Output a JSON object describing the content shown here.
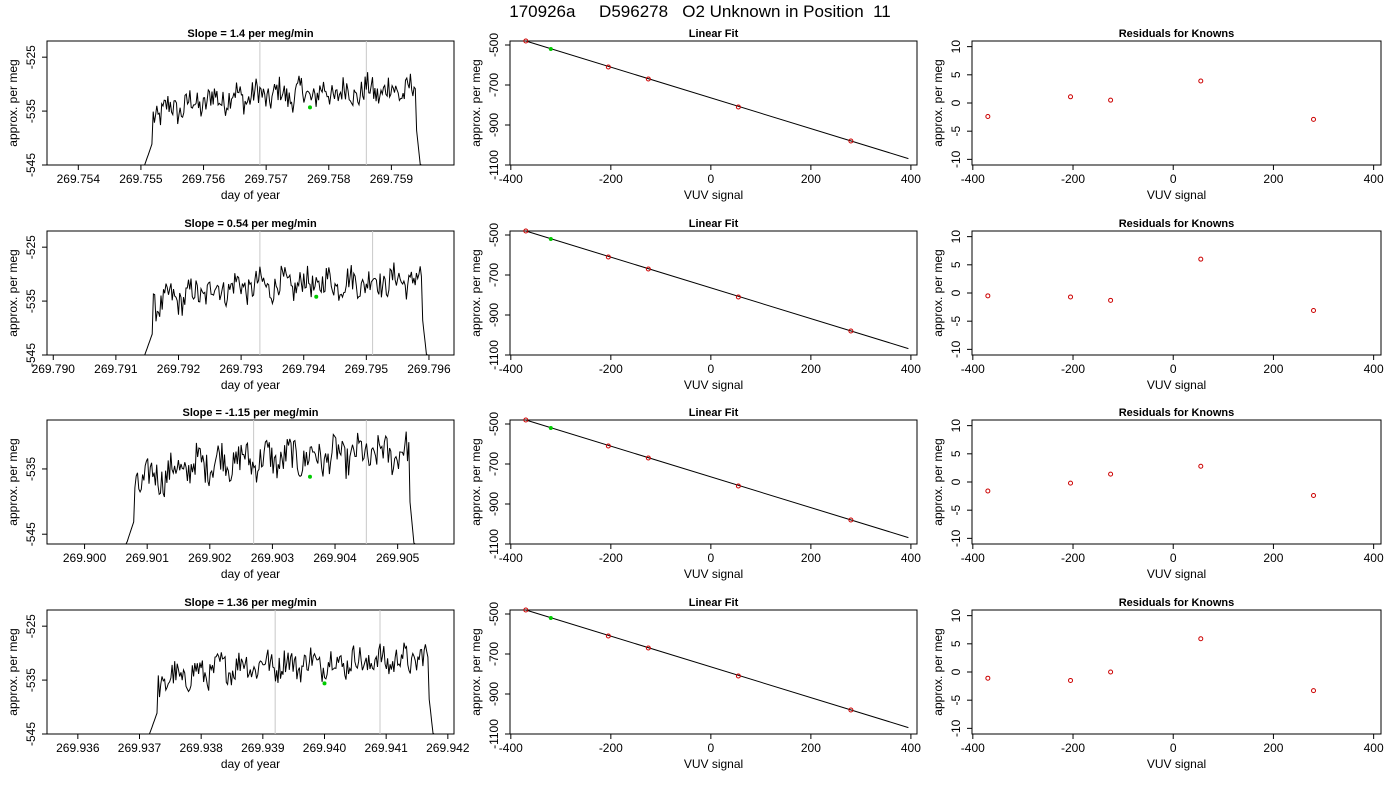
{
  "title": "170926a     D596278   O2 Unknown in Position  11",
  "colors": {
    "trace": "#000000",
    "marker": "#00cc00",
    "knowns": "#cc0000",
    "vline": "#c8c8c8",
    "fit": "#000000"
  },
  "rows": [
    {
      "slope_title": "Slope =  1.4  per meg/min",
      "xlabel": "day of year",
      "ylabel": "approx. per meg",
      "xlim": [
        269.7535,
        269.76
      ],
      "ylim": [
        -545,
        -522
      ],
      "xticks": [
        "269.754",
        "269.755",
        "269.756",
        "269.757",
        "269.758",
        "269.759"
      ],
      "yticks": [
        "-525",
        "-535",
        "-545"
      ],
      "vlines": [
        269.7569,
        269.7586
      ],
      "trace_start": 269.755,
      "trace_end": 269.7595,
      "marker": {
        "x": 269.7577,
        "y": -534.3
      },
      "fit_title": "Linear Fit",
      "fit_xlabel": "VUV signal",
      "fit_ylabel": "approx. per meg",
      "fit_xticks": [
        "-400",
        "-200",
        "0",
        "200",
        "400"
      ],
      "fit_yticks": [
        "-500",
        "-700",
        "-900",
        "-1100"
      ],
      "fit_line": [
        [
          -370,
          -480
        ],
        [
          395,
          -1068
        ]
      ],
      "unknown": {
        "x": -320,
        "y": -520
      },
      "knowns": [
        {
          "x": -370,
          "y": -480
        },
        {
          "x": -205,
          "y": -610
        },
        {
          "x": -125,
          "y": -670
        },
        {
          "x": 55,
          "y": -810
        },
        {
          "x": 280,
          "y": -980
        }
      ],
      "resid_title": "Residuals for Knowns",
      "resid_xlabel": "VUV signal",
      "resid_ylabel": "approx. per meg",
      "resid_xticks": [
        "-400",
        "-200",
        "0",
        "200",
        "400"
      ],
      "resid_yticks": [
        "10",
        "5",
        "0",
        "-5",
        "-10"
      ],
      "residuals": [
        {
          "x": -370,
          "y": -2.4
        },
        {
          "x": -205,
          "y": 1.1
        },
        {
          "x": -125,
          "y": 0.5
        },
        {
          "x": 55,
          "y": 3.9
        },
        {
          "x": 280,
          "y": -2.9
        }
      ]
    },
    {
      "slope_title": "Slope =  0.54  per meg/min",
      "xlabel": "day of year",
      "ylabel": "approx. per meg",
      "xlim": [
        269.7899,
        269.7964
      ],
      "ylim": [
        -545,
        -522
      ],
      "xticks": [
        "269.790",
        "269.791",
        "269.792",
        "269.793",
        "269.794",
        "269.795",
        "269.796"
      ],
      "yticks": [
        "-525",
        "-535",
        "-545"
      ],
      "vlines": [
        269.7933,
        269.7951
      ],
      "trace_start": 269.7914,
      "trace_end": 269.796,
      "marker": {
        "x": 269.7942,
        "y": -534.2
      },
      "fit_title": "Linear Fit",
      "fit_xlabel": "VUV signal",
      "fit_ylabel": "approx. per meg",
      "fit_xticks": [
        "-400",
        "-200",
        "0",
        "200",
        "400"
      ],
      "fit_yticks": [
        "-500",
        "-700",
        "-900",
        "-1100"
      ],
      "fit_line": [
        [
          -370,
          -480
        ],
        [
          395,
          -1068
        ]
      ],
      "unknown": {
        "x": -320,
        "y": -520
      },
      "knowns": [
        {
          "x": -370,
          "y": -480
        },
        {
          "x": -205,
          "y": -610
        },
        {
          "x": -125,
          "y": -670
        },
        {
          "x": 55,
          "y": -810
        },
        {
          "x": 280,
          "y": -980
        }
      ],
      "resid_title": "Residuals for Knowns",
      "resid_xlabel": "VUV signal",
      "resid_ylabel": "approx. per meg",
      "resid_xticks": [
        "-400",
        "-200",
        "0",
        "200",
        "400"
      ],
      "resid_yticks": [
        "10",
        "5",
        "0",
        "-5",
        "-10"
      ],
      "residuals": [
        {
          "x": -370,
          "y": -0.5
        },
        {
          "x": -205,
          "y": -0.7
        },
        {
          "x": -125,
          "y": -1.3
        },
        {
          "x": 55,
          "y": 6.0
        },
        {
          "x": 280,
          "y": -3.1
        }
      ]
    },
    {
      "slope_title": "Slope =  -1.15  per meg/min",
      "xlabel": "day of year",
      "ylabel": "approx. per meg",
      "xlim": [
        269.8994,
        269.9059
      ],
      "ylim": [
        -546.5,
        -527.5
      ],
      "xticks": [
        "269.900",
        "269.901",
        "269.902",
        "269.903",
        "269.904",
        "269.905"
      ],
      "yticks": [
        "-535",
        "-545"
      ],
      "vlines": [
        269.9027,
        269.9045
      ],
      "trace_start": 269.9006,
      "trace_end": 269.9053,
      "marker": {
        "x": 269.9036,
        "y": -536.2
      },
      "fit_title": "Linear Fit",
      "fit_xlabel": "VUV signal",
      "fit_ylabel": "approx. per meg",
      "fit_xticks": [
        "-400",
        "-200",
        "0",
        "200",
        "400"
      ],
      "fit_yticks": [
        "-500",
        "-700",
        "-900",
        "-1100"
      ],
      "fit_line": [
        [
          -370,
          -480
        ],
        [
          395,
          -1068
        ]
      ],
      "unknown": {
        "x": -320,
        "y": -520
      },
      "knowns": [
        {
          "x": -370,
          "y": -480
        },
        {
          "x": -205,
          "y": -610
        },
        {
          "x": -125,
          "y": -670
        },
        {
          "x": 55,
          "y": -810
        },
        {
          "x": 280,
          "y": -980
        }
      ],
      "resid_title": "Residuals for Knowns",
      "resid_xlabel": "VUV signal",
      "resid_ylabel": "approx. per meg",
      "resid_xticks": [
        "-400",
        "-200",
        "0",
        "200",
        "400"
      ],
      "resid_yticks": [
        "10",
        "5",
        "0",
        "-5",
        "-10"
      ],
      "residuals": [
        {
          "x": -370,
          "y": -1.6
        },
        {
          "x": -205,
          "y": -0.2
        },
        {
          "x": -125,
          "y": 1.4
        },
        {
          "x": 55,
          "y": 2.8
        },
        {
          "x": 280,
          "y": -2.4
        }
      ]
    },
    {
      "slope_title": "Slope =  1.36  per meg/min",
      "xlabel": "day of year",
      "ylabel": "approx. per meg",
      "xlim": [
        269.9355,
        269.9421
      ],
      "ylim": [
        -545,
        -522
      ],
      "xticks": [
        "269.936",
        "269.937",
        "269.938",
        "269.939",
        "269.940",
        "269.941",
        "269.942"
      ],
      "yticks": [
        "-525",
        "-535",
        "-545"
      ],
      "vlines": [
        269.9392,
        269.9409
      ],
      "trace_start": 269.9371,
      "trace_end": 269.9418,
      "marker": {
        "x": 269.94,
        "y": -535.6
      },
      "fit_title": "Linear Fit",
      "fit_xlabel": "VUV signal",
      "fit_ylabel": "approx. per meg",
      "fit_xticks": [
        "-400",
        "-200",
        "0",
        "200",
        "400"
      ],
      "fit_yticks": [
        "-500",
        "-700",
        "-900",
        "-1100"
      ],
      "fit_line": [
        [
          -370,
          -480
        ],
        [
          395,
          -1068
        ]
      ],
      "unknown": {
        "x": -320,
        "y": -520
      },
      "knowns": [
        {
          "x": -370,
          "y": -480
        },
        {
          "x": -205,
          "y": -610
        },
        {
          "x": -125,
          "y": -670
        },
        {
          "x": 55,
          "y": -810
        },
        {
          "x": 280,
          "y": -980
        }
      ],
      "resid_title": "Residuals for Knowns",
      "resid_xlabel": "VUV signal",
      "resid_ylabel": "approx. per meg",
      "resid_xticks": [
        "-400",
        "-200",
        "0",
        "200",
        "400"
      ],
      "resid_yticks": [
        "10",
        "5",
        "0",
        "-5",
        "-10"
      ],
      "residuals": [
        {
          "x": -370,
          "y": -1.1
        },
        {
          "x": -205,
          "y": -1.5
        },
        {
          "x": -125,
          "y": 0.0
        },
        {
          "x": 55,
          "y": 5.9
        },
        {
          "x": 280,
          "y": -3.3
        }
      ]
    }
  ],
  "chart_data": [
    {
      "type": "line",
      "title": "Slope =  1.4  per meg/min",
      "xlabel": "day of year",
      "ylabel": "approx. per meg",
      "xlim": [
        269.7535,
        269.76
      ],
      "ylim": [
        -545,
        -522
      ],
      "vertical_lines": [
        269.7569,
        269.7586
      ],
      "highlight_point": {
        "x": 269.7577,
        "y": -534.3
      },
      "grid": false
    },
    {
      "type": "scatter",
      "title": "Linear Fit",
      "xlabel": "VUV signal",
      "ylabel": "approx. per meg",
      "xlim": [
        -400,
        400
      ],
      "ylim": [
        -1100,
        -480
      ],
      "knowns": [
        [
          -370,
          -480
        ],
        [
          -205,
          -610
        ],
        [
          -125,
          -670
        ],
        [
          55,
          -810
        ],
        [
          280,
          -980
        ]
      ],
      "unknown": [
        -320,
        -520
      ],
      "grid": false
    },
    {
      "type": "scatter",
      "title": "Residuals for Knowns",
      "xlabel": "VUV signal",
      "ylabel": "approx. per meg",
      "xlim": [
        -400,
        400
      ],
      "ylim": [
        -10,
        10
      ],
      "points": [
        [
          -370,
          -2.4
        ],
        [
          -205,
          1.1
        ],
        [
          -125,
          0.5
        ],
        [
          55,
          3.9
        ],
        [
          280,
          -2.9
        ]
      ],
      "grid": false
    },
    {
      "type": "line",
      "title": "Slope =  0.54  per meg/min",
      "xlabel": "day of year",
      "ylabel": "approx. per meg",
      "xlim": [
        269.7899,
        269.7964
      ],
      "ylim": [
        -545,
        -522
      ],
      "vertical_lines": [
        269.7933,
        269.7951
      ],
      "highlight_point": {
        "x": 269.7942,
        "y": -534.2
      },
      "grid": false
    },
    {
      "type": "scatter",
      "title": "Linear Fit",
      "xlabel": "VUV signal",
      "ylabel": "approx. per meg",
      "xlim": [
        -400,
        400
      ],
      "ylim": [
        -1100,
        -480
      ],
      "knowns": [
        [
          -370,
          -480
        ],
        [
          -205,
          -610
        ],
        [
          -125,
          -670
        ],
        [
          55,
          -810
        ],
        [
          280,
          -980
        ]
      ],
      "unknown": [
        -320,
        -520
      ],
      "grid": false
    },
    {
      "type": "scatter",
      "title": "Residuals for Knowns",
      "xlabel": "VUV signal",
      "ylabel": "approx. per meg",
      "xlim": [
        -400,
        400
      ],
      "ylim": [
        -10,
        10
      ],
      "points": [
        [
          -370,
          -0.5
        ],
        [
          -205,
          -0.7
        ],
        [
          -125,
          -1.3
        ],
        [
          55,
          6.0
        ],
        [
          280,
          -3.1
        ]
      ],
      "grid": false
    },
    {
      "type": "line",
      "title": "Slope =  -1.15  per meg/min",
      "xlabel": "day of year",
      "ylabel": "approx. per meg",
      "xlim": [
        269.8994,
        269.9059
      ],
      "ylim": [
        -546.5,
        -527.5
      ],
      "vertical_lines": [
        269.9027,
        269.9045
      ],
      "highlight_point": {
        "x": 269.9036,
        "y": -536.2
      },
      "grid": false
    },
    {
      "type": "scatter",
      "title": "Linear Fit",
      "xlabel": "VUV signal",
      "ylabel": "approx. per meg",
      "xlim": [
        -400,
        400
      ],
      "ylim": [
        -1100,
        -480
      ],
      "knowns": [
        [
          -370,
          -480
        ],
        [
          -205,
          -610
        ],
        [
          -125,
          -670
        ],
        [
          55,
          -810
        ],
        [
          280,
          -980
        ]
      ],
      "unknown": [
        -320,
        -520
      ],
      "grid": false
    },
    {
      "type": "scatter",
      "title": "Residuals for Knowns",
      "xlabel": "VUV signal",
      "ylabel": "approx. per meg",
      "xlim": [
        -400,
        400
      ],
      "ylim": [
        -10,
        10
      ],
      "points": [
        [
          -370,
          -1.6
        ],
        [
          -205,
          -0.2
        ],
        [
          -125,
          1.4
        ],
        [
          55,
          2.8
        ],
        [
          280,
          -2.4
        ]
      ],
      "grid": false
    },
    {
      "type": "line",
      "title": "Slope =  1.36  per meg/min",
      "xlabel": "day of year",
      "ylabel": "approx. per meg",
      "xlim": [
        269.9355,
        269.9421
      ],
      "ylim": [
        -545,
        -522
      ],
      "vertical_lines": [
        269.9392,
        269.9409
      ],
      "highlight_point": {
        "x": 269.94,
        "y": -535.6
      },
      "grid": false
    },
    {
      "type": "scatter",
      "title": "Linear Fit",
      "xlabel": "VUV signal",
      "ylabel": "approx. per meg",
      "xlim": [
        -400,
        400
      ],
      "ylim": [
        -1100,
        -480
      ],
      "knowns": [
        [
          -370,
          -480
        ],
        [
          -205,
          -610
        ],
        [
          -125,
          -670
        ],
        [
          55,
          -810
        ],
        [
          280,
          -980
        ]
      ],
      "unknown": [
        -320,
        -520
      ],
      "grid": false
    },
    {
      "type": "scatter",
      "title": "Residuals for Knowns",
      "xlabel": "VUV signal",
      "ylabel": "approx. per meg",
      "xlim": [
        -400,
        400
      ],
      "ylim": [
        -10,
        10
      ],
      "points": [
        [
          -370,
          -1.1
        ],
        [
          -205,
          -1.5
        ],
        [
          -125,
          0.0
        ],
        [
          55,
          5.9
        ],
        [
          280,
          -3.3
        ]
      ],
      "grid": false
    }
  ]
}
